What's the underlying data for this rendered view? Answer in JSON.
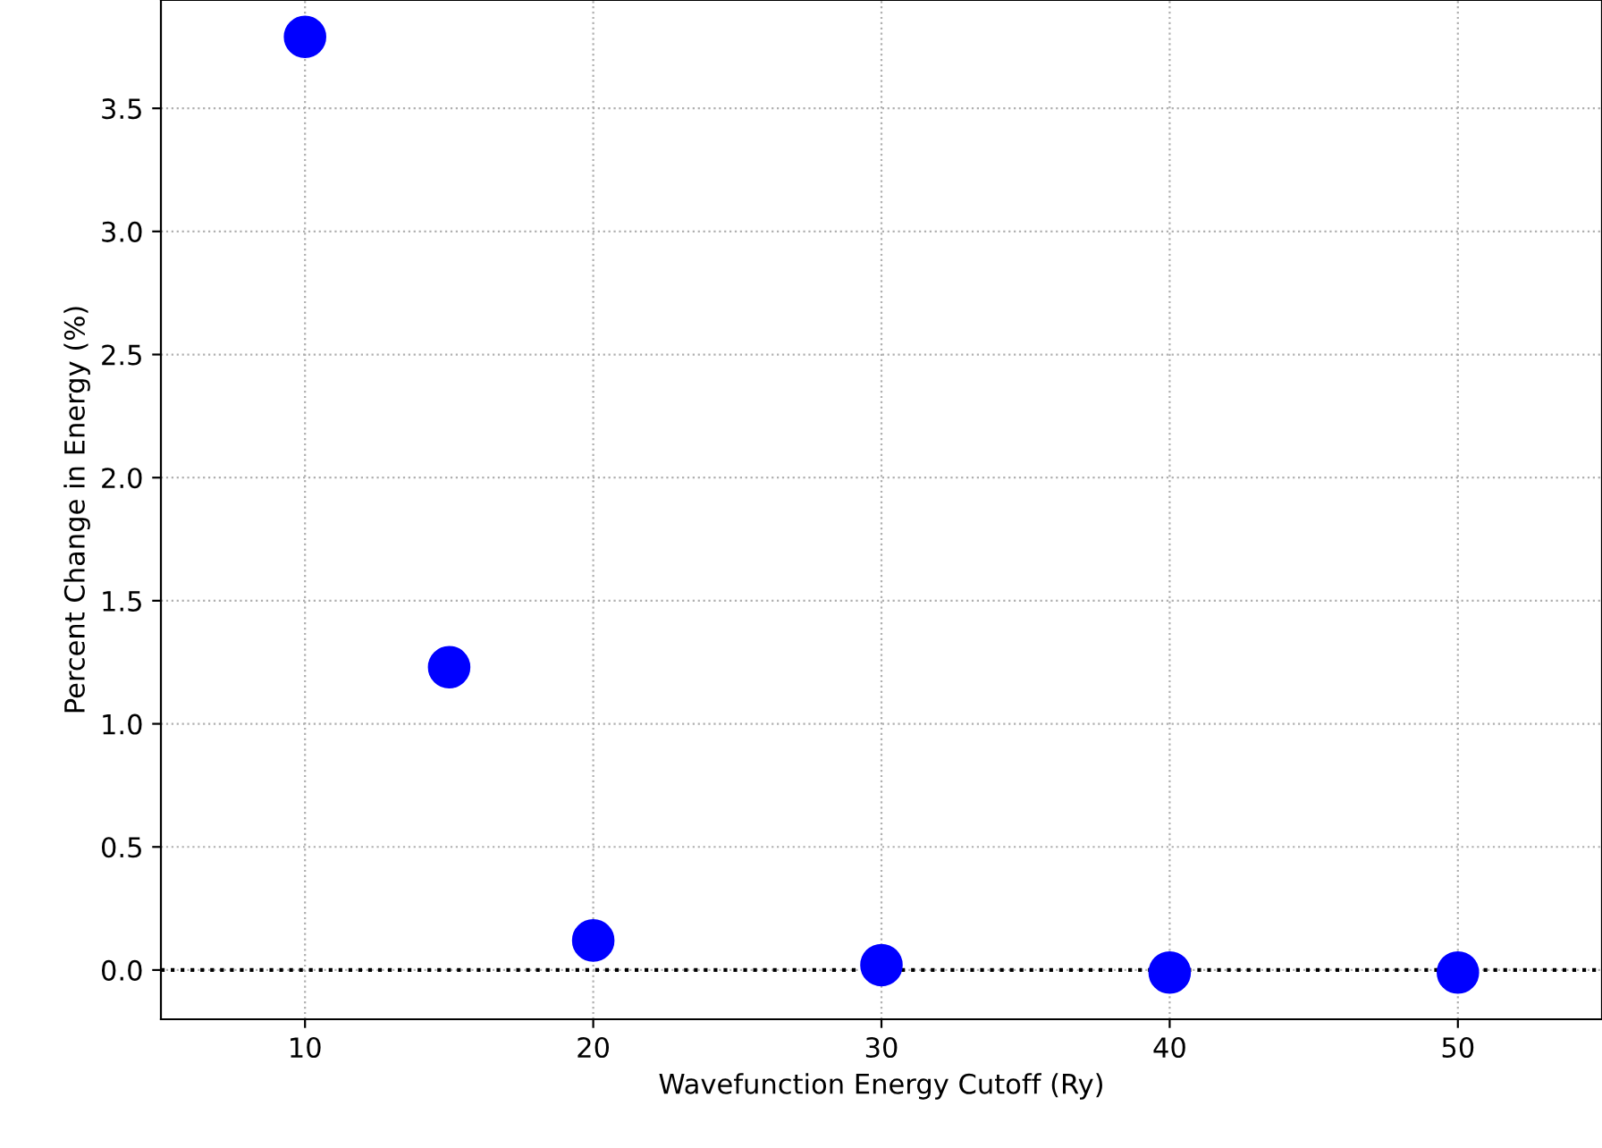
{
  "chart_data": {
    "type": "scatter",
    "xlabel": "Wavefunction Energy Cutoff (Ry)",
    "ylabel": "Percent Change in Energy (%)",
    "x": [
      10,
      15,
      20,
      30,
      40,
      50
    ],
    "series": [
      {
        "color": "#0000ff",
        "values": [
          3.79,
          1.23,
          0.12,
          0.02,
          -0.01,
          -0.01
        ]
      }
    ],
    "xlim": [
      5,
      55
    ],
    "xticks": [
      10,
      20,
      30,
      40,
      50
    ],
    "ylim": [
      -0.2,
      3.94
    ],
    "yticks": [
      {
        "value": 0,
        "label": "0.0"
      },
      0.5,
      {
        "value": 1,
        "label": "1.0"
      },
      1.5,
      {
        "value": 2,
        "label": "2.0"
      },
      2.5,
      {
        "value": 3,
        "label": "3.0"
      },
      3.5
    ],
    "ref_lines": [
      {
        "axis": "y",
        "value": 0,
        "color": "#000000",
        "line_style": "dotted"
      }
    ],
    "grid": true,
    "marker": "circle"
  }
}
